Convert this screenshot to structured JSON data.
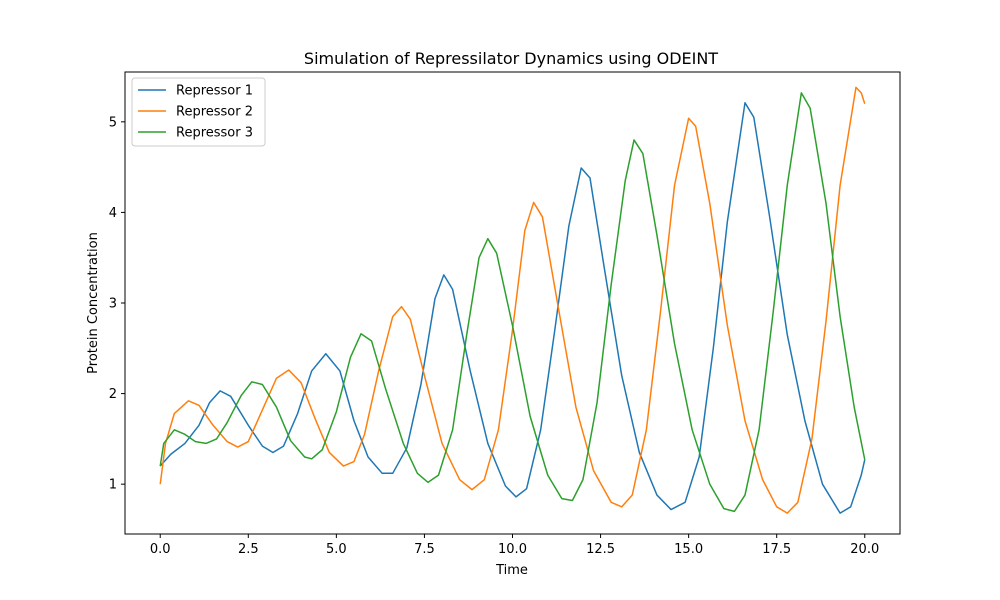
{
  "chart_data": {
    "type": "line",
    "title": "Simulation of Repressilator Dynamics using ODEINT",
    "xlabel": "Time",
    "ylabel": "Protein Concentration",
    "xlim": [
      -1.0,
      21.0
    ],
    "ylim": [
      0.45,
      5.55
    ],
    "xticks": [
      0,
      2.5,
      5,
      7.5,
      10,
      12.5,
      15,
      17.5,
      20
    ],
    "xtick_labels": [
      "0.0",
      "2.5",
      "5.0",
      "7.5",
      "10.0",
      "12.5",
      "15.0",
      "17.5",
      "20.0"
    ],
    "yticks": [
      1,
      2,
      3,
      4,
      5
    ],
    "ytick_labels": [
      "1",
      "2",
      "3",
      "4",
      "5"
    ],
    "grid": false,
    "legend_position": "top-left",
    "series": [
      {
        "name": "Repressor 1",
        "color": "#1f77b4",
        "points": [
          [
            0.0,
            1.2
          ],
          [
            0.3,
            1.33
          ],
          [
            0.7,
            1.45
          ],
          [
            1.1,
            1.65
          ],
          [
            1.4,
            1.9
          ],
          [
            1.7,
            2.03
          ],
          [
            2.0,
            1.97
          ],
          [
            2.5,
            1.65
          ],
          [
            2.9,
            1.42
          ],
          [
            3.2,
            1.35
          ],
          [
            3.5,
            1.42
          ],
          [
            3.9,
            1.78
          ],
          [
            4.3,
            2.25
          ],
          [
            4.7,
            2.44
          ],
          [
            5.1,
            2.25
          ],
          [
            5.5,
            1.7
          ],
          [
            5.9,
            1.3
          ],
          [
            6.3,
            1.12
          ],
          [
            6.6,
            1.12
          ],
          [
            7.0,
            1.4
          ],
          [
            7.4,
            2.1
          ],
          [
            7.8,
            3.05
          ],
          [
            8.05,
            3.31
          ],
          [
            8.3,
            3.15
          ],
          [
            8.8,
            2.25
          ],
          [
            9.3,
            1.45
          ],
          [
            9.8,
            0.98
          ],
          [
            10.1,
            0.86
          ],
          [
            10.4,
            0.95
          ],
          [
            10.8,
            1.6
          ],
          [
            11.2,
            2.7
          ],
          [
            11.6,
            3.85
          ],
          [
            11.95,
            4.49
          ],
          [
            12.2,
            4.38
          ],
          [
            12.6,
            3.4
          ],
          [
            13.1,
            2.2
          ],
          [
            13.6,
            1.35
          ],
          [
            14.1,
            0.88
          ],
          [
            14.5,
            0.72
          ],
          [
            14.9,
            0.8
          ],
          [
            15.3,
            1.3
          ],
          [
            15.7,
            2.5
          ],
          [
            16.1,
            3.9
          ],
          [
            16.6,
            5.21
          ],
          [
            16.85,
            5.05
          ],
          [
            17.3,
            3.95
          ],
          [
            17.8,
            2.65
          ],
          [
            18.3,
            1.7
          ],
          [
            18.8,
            1.0
          ],
          [
            19.3,
            0.68
          ],
          [
            19.6,
            0.75
          ],
          [
            19.9,
            1.1
          ],
          [
            20.0,
            1.27
          ]
        ]
      },
      {
        "name": "Repressor 2",
        "color": "#ff7f0e",
        "points": [
          [
            0.0,
            1.0
          ],
          [
            0.15,
            1.45
          ],
          [
            0.4,
            1.78
          ],
          [
            0.8,
            1.92
          ],
          [
            1.1,
            1.87
          ],
          [
            1.5,
            1.65
          ],
          [
            1.9,
            1.47
          ],
          [
            2.2,
            1.41
          ],
          [
            2.5,
            1.47
          ],
          [
            2.9,
            1.82
          ],
          [
            3.3,
            2.17
          ],
          [
            3.65,
            2.26
          ],
          [
            4.0,
            2.12
          ],
          [
            4.4,
            1.72
          ],
          [
            4.8,
            1.35
          ],
          [
            5.2,
            1.2
          ],
          [
            5.5,
            1.25
          ],
          [
            5.8,
            1.55
          ],
          [
            6.2,
            2.25
          ],
          [
            6.6,
            2.85
          ],
          [
            6.85,
            2.96
          ],
          [
            7.1,
            2.82
          ],
          [
            7.5,
            2.2
          ],
          [
            8.0,
            1.45
          ],
          [
            8.5,
            1.05
          ],
          [
            8.85,
            0.94
          ],
          [
            9.2,
            1.05
          ],
          [
            9.6,
            1.6
          ],
          [
            10.0,
            2.7
          ],
          [
            10.35,
            3.8
          ],
          [
            10.6,
            4.11
          ],
          [
            10.85,
            3.95
          ],
          [
            11.3,
            2.95
          ],
          [
            11.8,
            1.85
          ],
          [
            12.3,
            1.15
          ],
          [
            12.8,
            0.8
          ],
          [
            13.1,
            0.75
          ],
          [
            13.4,
            0.88
          ],
          [
            13.8,
            1.6
          ],
          [
            14.2,
            2.9
          ],
          [
            14.6,
            4.3
          ],
          [
            15.0,
            5.04
          ],
          [
            15.2,
            4.95
          ],
          [
            15.6,
            4.1
          ],
          [
            16.1,
            2.75
          ],
          [
            16.6,
            1.7
          ],
          [
            17.1,
            1.05
          ],
          [
            17.5,
            0.75
          ],
          [
            17.8,
            0.68
          ],
          [
            18.1,
            0.8
          ],
          [
            18.5,
            1.5
          ],
          [
            18.9,
            2.8
          ],
          [
            19.3,
            4.3
          ],
          [
            19.75,
            5.38
          ],
          [
            19.9,
            5.32
          ],
          [
            20.0,
            5.2
          ]
        ]
      },
      {
        "name": "Repressor 3",
        "color": "#2ca02c",
        "points": [
          [
            0.0,
            1.2
          ],
          [
            0.1,
            1.45
          ],
          [
            0.4,
            1.6
          ],
          [
            0.7,
            1.55
          ],
          [
            1.0,
            1.47
          ],
          [
            1.3,
            1.45
          ],
          [
            1.6,
            1.5
          ],
          [
            1.9,
            1.68
          ],
          [
            2.3,
            1.98
          ],
          [
            2.6,
            2.13
          ],
          [
            2.9,
            2.1
          ],
          [
            3.3,
            1.85
          ],
          [
            3.7,
            1.48
          ],
          [
            4.1,
            1.3
          ],
          [
            4.3,
            1.28
          ],
          [
            4.6,
            1.38
          ],
          [
            5.0,
            1.8
          ],
          [
            5.4,
            2.4
          ],
          [
            5.7,
            2.66
          ],
          [
            6.0,
            2.58
          ],
          [
            6.4,
            2.05
          ],
          [
            6.9,
            1.45
          ],
          [
            7.3,
            1.12
          ],
          [
            7.6,
            1.02
          ],
          [
            7.9,
            1.1
          ],
          [
            8.3,
            1.6
          ],
          [
            8.7,
            2.65
          ],
          [
            9.05,
            3.5
          ],
          [
            9.3,
            3.71
          ],
          [
            9.55,
            3.55
          ],
          [
            10.0,
            2.75
          ],
          [
            10.5,
            1.75
          ],
          [
            11.0,
            1.1
          ],
          [
            11.4,
            0.84
          ],
          [
            11.7,
            0.82
          ],
          [
            12.0,
            1.05
          ],
          [
            12.4,
            1.9
          ],
          [
            12.8,
            3.2
          ],
          [
            13.2,
            4.35
          ],
          [
            13.45,
            4.8
          ],
          [
            13.7,
            4.65
          ],
          [
            14.1,
            3.75
          ],
          [
            14.6,
            2.55
          ],
          [
            15.1,
            1.6
          ],
          [
            15.6,
            1.0
          ],
          [
            16.0,
            0.73
          ],
          [
            16.3,
            0.7
          ],
          [
            16.6,
            0.88
          ],
          [
            17.0,
            1.6
          ],
          [
            17.4,
            2.9
          ],
          [
            17.8,
            4.3
          ],
          [
            18.2,
            5.32
          ],
          [
            18.45,
            5.15
          ],
          [
            18.9,
            4.1
          ],
          [
            19.3,
            2.85
          ],
          [
            19.7,
            1.85
          ],
          [
            20.0,
            1.27
          ]
        ]
      }
    ]
  }
}
